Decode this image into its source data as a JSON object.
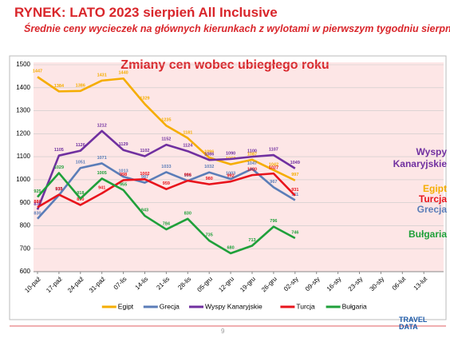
{
  "chart_data": {
    "type": "line",
    "title": "RYNEK: LATO 2023 sierpień All Inclusive",
    "subtitle": "Średnie ceny wycieczek na głównych kierunkach z wylotami w pierwszym tygodniu sierpnia",
    "chart_title": "Zmiany cen wobec ubiegłego roku",
    "categories": [
      "10-paź",
      "17-paź",
      "24-paź",
      "31-paź",
      "07-lis",
      "14-lis",
      "21-lis",
      "28-lis",
      "05-gru",
      "12-gru",
      "19-gru",
      "26-gru",
      "02-sty",
      "09-sty",
      "16-sty",
      "23-sty",
      "30-sty",
      "06-lut",
      "13-lut"
    ],
    "ylim": [
      600,
      1500
    ],
    "yticks": [
      600,
      700,
      800,
      900,
      1000,
      1100,
      1200,
      1300,
      1400,
      1500
    ],
    "grid": true,
    "legend": "bottom",
    "series": [
      {
        "name": "Egipt",
        "color": "#f5ad00",
        "values": [
          1447,
          1384,
          1386,
          1431,
          1440,
          1329,
          1235,
          1181,
          1096,
          1067,
          1087,
          1042,
          997,
          null,
          null,
          null,
          null,
          null,
          null
        ]
      },
      {
        "name": "Grecja",
        "color": "#5b7db8",
        "values": [
          830,
          933,
          1051,
          1071,
          1013,
          987,
          1033,
          995,
          1032,
          1003,
          1047,
          967,
          911,
          null,
          null,
          null,
          null,
          null,
          null
        ]
      },
      {
        "name": "Wyspy Kanaryjskie",
        "color": "#7030a0",
        "values": [
          870,
          1105,
          1126,
          1212,
          1129,
          1102,
          1152,
          1124,
          1086,
          1090,
          1100,
          1107,
          1049,
          null,
          null,
          null,
          null,
          null,
          null
        ]
      },
      {
        "name": "Turcja",
        "color": "#e8141c",
        "values": [
          880,
          935,
          890,
          941,
          998,
          1002,
          959,
          996,
          980,
          992,
          1020,
          1027,
          931,
          null,
          null,
          null,
          null,
          null,
          null
        ]
      },
      {
        "name": "Bułgaria",
        "color": "#1fa03a",
        "values": [
          925,
          1029,
          918,
          1005,
          955,
          843,
          784,
          830,
          735,
          680,
          713,
          796,
          746,
          null,
          null,
          null,
          null,
          null,
          null
        ]
      }
    ]
  },
  "footer": {
    "page": "9",
    "logo_top": "TRAVEL",
    "logo_bottom": "DATA"
  }
}
